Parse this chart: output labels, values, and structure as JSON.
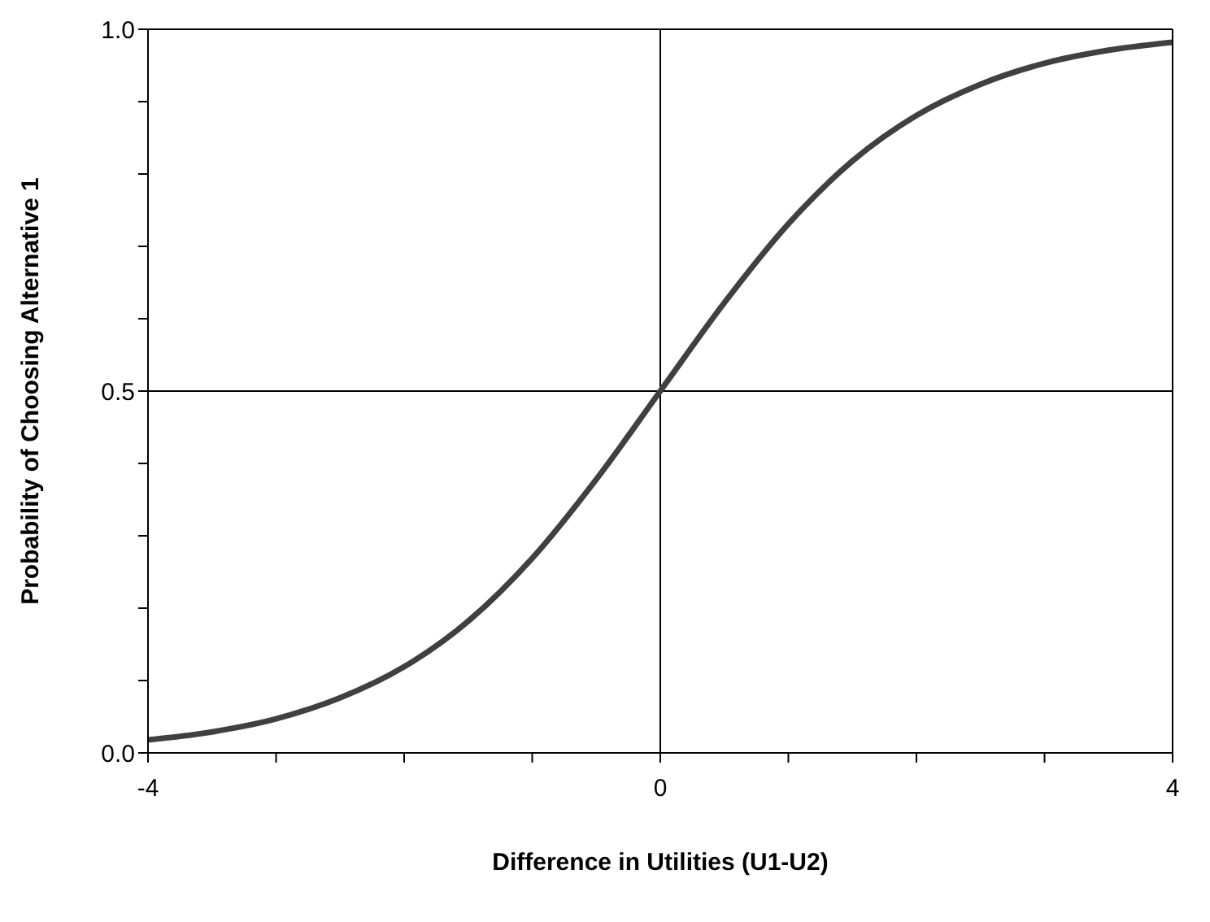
{
  "chart_data": {
    "type": "line",
    "xlabel": "Difference in Utilities (U1-U2)",
    "ylabel": "Probability of Choosing Alternative 1",
    "x": [
      -4,
      -3.5,
      -3,
      -2.5,
      -2,
      -1.5,
      -1,
      -0.5,
      0,
      0.5,
      1,
      1.5,
      2,
      2.5,
      3,
      3.5,
      4
    ],
    "series": [
      {
        "color": "#404040",
        "values": [
          0.018,
          0.029,
          0.047,
          0.076,
          0.119,
          0.182,
          0.269,
          0.378,
          0.5,
          0.622,
          0.731,
          0.818,
          0.881,
          0.924,
          0.953,
          0.971,
          0.982
        ]
      }
    ],
    "xlim": [
      -4,
      4
    ],
    "xticks": [
      -4,
      {
        "value": -3,
        "label": null
      },
      {
        "value": -2,
        "label": null
      },
      {
        "value": -1,
        "label": null
      },
      0,
      {
        "value": 1,
        "label": null
      },
      {
        "value": 2,
        "label": null
      },
      {
        "value": 3,
        "label": null
      },
      4
    ],
    "ylim": [
      0,
      1
    ],
    "yticks": [
      {
        "value": 0,
        "label": "0.0"
      },
      {
        "value": 0.1,
        "label": null
      },
      {
        "value": 0.2,
        "label": null
      },
      {
        "value": 0.3,
        "label": null
      },
      {
        "value": 0.4,
        "label": null
      },
      {
        "value": 0.5,
        "label": "0.5"
      },
      {
        "value": 0.6,
        "label": null
      },
      {
        "value": 0.7,
        "label": null
      },
      {
        "value": 0.8,
        "label": null
      },
      {
        "value": 0.9,
        "label": null
      },
      {
        "value": 1,
        "label": "1.0"
      }
    ],
    "ref_lines": [
      {
        "axis": "x",
        "value": 0,
        "color": "#000000"
      },
      {
        "axis": "y",
        "value": 0.5,
        "color": "#000000"
      }
    ],
    "marker": "none",
    "line_style": "solid"
  }
}
